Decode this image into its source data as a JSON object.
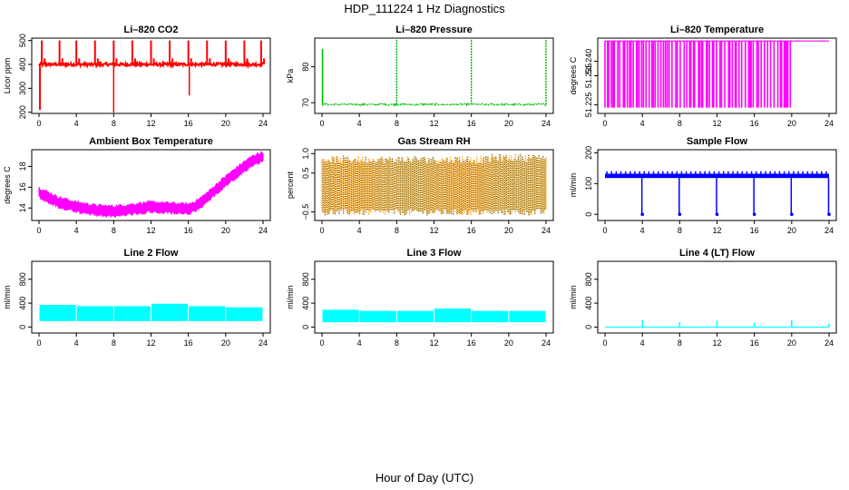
{
  "figure": {
    "title": "HDP_111224  1 Hz Diagnostics",
    "xlabel": "Hour of Day (UTC)"
  },
  "chart_data": [
    {
      "id": "co2",
      "type": "line",
      "title": "Li–820 CO2",
      "ylabel": "Licor ppm",
      "color": "#ff0000",
      "x": [
        0,
        24
      ],
      "xlim": [
        0,
        24
      ],
      "xticks": [
        0,
        4,
        8,
        12,
        16,
        20,
        24
      ],
      "ylim": [
        195,
        510
      ],
      "yticks": [
        "200",
        "300",
        "400",
        "500"
      ],
      "ytick_values": [
        200,
        300,
        400,
        500
      ],
      "baseline": 400,
      "spikes_up": [
        0.3,
        2.2,
        4.0,
        6.0,
        8.0,
        10.0,
        12.0,
        14.0,
        16.0,
        18.0,
        20.0,
        22.0,
        23.8
      ],
      "spikes_down": [
        0.1,
        8.0,
        16.1
      ],
      "notes": "steady ~400 ppm with calibration spikes to ~500 every 2 h"
    },
    {
      "id": "pressure",
      "type": "line",
      "title": "Li–820 Pressure",
      "ylabel": "kPa",
      "color": "#00bb00",
      "xlim": [
        0,
        24
      ],
      "xticks": [
        0,
        4,
        8,
        12,
        16,
        20,
        24
      ],
      "ylim": [
        67,
        88
      ],
      "yticks": [
        "70",
        "80"
      ],
      "ytick_values": [
        70,
        80
      ],
      "baseline": 69.5,
      "spikes_up": [
        0.0,
        8.0,
        16.0,
        24.0
      ],
      "spike_value": 88
    },
    {
      "id": "temperature",
      "type": "line",
      "title": "Li–820 Temperature",
      "ylabel": "degrees C",
      "color": "#ff00ff",
      "xlim": [
        0,
        24
      ],
      "xticks": [
        0,
        4,
        8,
        12,
        16,
        20,
        24
      ],
      "ylim": [
        51.222,
        51.248
      ],
      "yticks": [
        "51.225",
        "51.235",
        "51.240"
      ],
      "ytick_values": [
        51.225,
        51.235,
        51.24
      ],
      "high_value": 51.247,
      "low_value": 51.224,
      "flat_after_hour": 20.0
    },
    {
      "id": "ambient",
      "type": "line",
      "title": "Ambient Box Temperature",
      "ylabel": "degrees C",
      "color": "#ff00ff",
      "xlim": [
        0,
        24
      ],
      "xticks": [
        0,
        4,
        8,
        12,
        16,
        20,
        24
      ],
      "ylim": [
        12.8,
        19.6
      ],
      "yticks": [
        "14",
        "16",
        "18"
      ],
      "ytick_values": [
        14,
        16,
        18
      ],
      "x_points": [
        0,
        2,
        4,
        6,
        8,
        10,
        12,
        14,
        16,
        17,
        18,
        19,
        20,
        21,
        22,
        23,
        24
      ],
      "y_points": [
        15.5,
        14.6,
        14.1,
        13.8,
        13.7,
        13.9,
        14.1,
        14.0,
        13.9,
        14.3,
        15.0,
        15.8,
        16.6,
        17.3,
        18.0,
        18.6,
        18.9
      ],
      "band_width": 0.9
    },
    {
      "id": "rh",
      "type": "scatter",
      "title": "Gas Stream RH",
      "ylabel": "percent",
      "color": "#ff9900",
      "color2": "#8b6a00",
      "xlim": [
        0,
        24
      ],
      "xticks": [
        0,
        4,
        8,
        12,
        16,
        20,
        24
      ],
      "ylim": [
        -0.72,
        1.1
      ],
      "yticks": [
        "−0.5",
        "0.5",
        "1.0"
      ],
      "ytick_values": [
        -0.5,
        0.5,
        1.0
      ],
      "band_low": -0.5,
      "band_high": 0.85
    },
    {
      "id": "sample",
      "type": "line",
      "title": "Sample Flow",
      "ylabel": "ml/min",
      "color": "#0000ff",
      "xlim": [
        0,
        24
      ],
      "xticks": [
        0,
        4,
        8,
        12,
        16,
        20,
        24
      ],
      "ylim": [
        -20,
        210
      ],
      "yticks": [
        "0",
        "100",
        "200"
      ],
      "ytick_values": [
        0,
        100,
        200
      ],
      "baseline": 118,
      "band_top": 132,
      "dips_to_zero": [
        4.0,
        8.0,
        12.0,
        16.0,
        20.0,
        24.0
      ]
    },
    {
      "id": "line2",
      "type": "area",
      "title": "Line 2 Flow",
      "ylabel": "ml/min",
      "color": "#00ffff",
      "xlim": [
        0,
        24
      ],
      "xticks": [
        0,
        4,
        8,
        12,
        16,
        20,
        24
      ],
      "ylim": [
        -100,
        1100
      ],
      "yticks": [
        "0",
        "400",
        "800"
      ],
      "ytick_values": [
        0,
        400,
        800
      ],
      "segments": [
        {
          "x0": 0,
          "x1": 4,
          "low": 100,
          "high": 370
        },
        {
          "x0": 4,
          "x1": 8,
          "low": 100,
          "high": 350
        },
        {
          "x0": 8,
          "x1": 12,
          "low": 100,
          "high": 350
        },
        {
          "x0": 12,
          "x1": 16,
          "low": 100,
          "high": 390
        },
        {
          "x0": 16,
          "x1": 20,
          "low": 100,
          "high": 350
        },
        {
          "x0": 20,
          "x1": 24,
          "low": 100,
          "high": 330
        }
      ]
    },
    {
      "id": "line3",
      "type": "area",
      "title": "Line 3 Flow",
      "ylabel": "ml/min",
      "color": "#00ffff",
      "xlim": [
        0,
        24
      ],
      "xticks": [
        0,
        4,
        8,
        12,
        16,
        20,
        24
      ],
      "ylim": [
        -100,
        1100
      ],
      "yticks": [
        "0",
        "400",
        "800"
      ],
      "ytick_values": [
        0,
        400,
        800
      ],
      "segments": [
        {
          "x0": 0,
          "x1": 4,
          "low": 80,
          "high": 290
        },
        {
          "x0": 4,
          "x1": 8,
          "low": 80,
          "high": 270
        },
        {
          "x0": 8,
          "x1": 12,
          "low": 80,
          "high": 270
        },
        {
          "x0": 12,
          "x1": 16,
          "low": 80,
          "high": 310
        },
        {
          "x0": 16,
          "x1": 20,
          "low": 80,
          "high": 270
        },
        {
          "x0": 20,
          "x1": 24,
          "low": 80,
          "high": 270
        }
      ]
    },
    {
      "id": "line4",
      "type": "line",
      "title": "Line 4 (LT) Flow",
      "ylabel": "ml/min",
      "color": "#00ffff",
      "xlim": [
        0,
        24
      ],
      "xticks": [
        0,
        4,
        8,
        12,
        16,
        20,
        24
      ],
      "ylim": [
        -100,
        1100
      ],
      "yticks": [
        "0",
        "400",
        "800"
      ],
      "ytick_values": [
        0,
        400,
        800
      ],
      "baseline": 0,
      "spikes": [
        [
          4,
          120
        ],
        [
          8,
          80
        ],
        [
          12,
          110
        ],
        [
          16,
          70
        ],
        [
          20,
          120
        ],
        [
          24,
          60
        ]
      ]
    }
  ]
}
